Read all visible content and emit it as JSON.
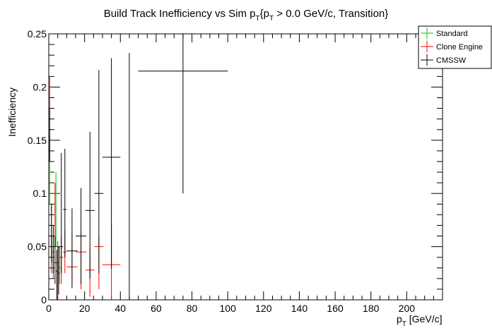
{
  "chart_data": {
    "type": "scatter",
    "title": "Build Track Inefficiency vs Sim p_T{p_T > 0.0 GeV/c, Transition}",
    "xlabel": "p_T [GeV/c]",
    "ylabel": "Inefficiency",
    "xlim": [
      0,
      220
    ],
    "ylim": [
      0,
      0.25
    ],
    "x_ticks": [
      0,
      20,
      40,
      60,
      80,
      100,
      120,
      140,
      160,
      180,
      200
    ],
    "y_ticks": [
      0,
      0.05,
      0.1,
      0.15,
      0.2,
      0.25
    ],
    "y_tick_labels": [
      "0",
      "0.05",
      "0.1",
      "0.15",
      "0.2",
      "0.25"
    ],
    "grid": false,
    "legend_position": "top-right",
    "series": [
      {
        "name": "Standard",
        "color": "#00cc00",
        "points": [
          {
            "x": 0.5,
            "xerr": 0.5,
            "y": 0.12,
            "yerr_low": 0.03,
            "yerr_high": 0.035
          },
          {
            "x": 1.5,
            "xerr": 0.5,
            "y": 0.06,
            "yerr_low": 0.02,
            "yerr_high": 0.03
          },
          {
            "x": 2.5,
            "xerr": 0.5,
            "y": 0.04,
            "yerr_low": 0.015,
            "yerr_high": 0.02
          },
          {
            "x": 4,
            "xerr": 1,
            "y": 0.1,
            "yerr_low": 0.05,
            "yerr_high": 0.02
          },
          {
            "x": 6,
            "xerr": 1,
            "y": 0.03,
            "yerr_low": 0.015,
            "yerr_high": 0.02
          }
        ]
      },
      {
        "name": "Clone Engine",
        "color": "#ff0000",
        "points": [
          {
            "x": 0.5,
            "xerr": 0.5,
            "y": 0.2,
            "yerr_low": 0.02,
            "yerr_high": 0.01
          },
          {
            "x": 1.5,
            "xerr": 0.5,
            "y": 0.04,
            "yerr_low": 0.015,
            "yerr_high": 0.02
          },
          {
            "x": 2.5,
            "xerr": 0.5,
            "y": 0.03,
            "yerr_low": 0.01,
            "yerr_high": 0.02
          },
          {
            "x": 3.5,
            "xerr": 0.5,
            "y": 0.1,
            "yerr_low": 0.05,
            "yerr_high": 0.01
          },
          {
            "x": 5,
            "xerr": 1,
            "y": 0.035,
            "yerr_low": 0.035,
            "yerr_high": 0.02
          },
          {
            "x": 7,
            "xerr": 1,
            "y": 0.04,
            "yerr_low": 0.025,
            "yerr_high": 0.02
          },
          {
            "x": 9,
            "xerr": 1,
            "y": 0.045,
            "yerr_low": 0.02,
            "yerr_high": 0.02
          },
          {
            "x": 13,
            "xerr": 3,
            "y": 0.031,
            "yerr_low": 0.015,
            "yerr_high": 0.03
          },
          {
            "x": 18,
            "xerr": 3,
            "y": 0.045,
            "yerr_low": 0.035,
            "yerr_high": 0.02
          },
          {
            "x": 23,
            "xerr": 2.5,
            "y": 0.028,
            "yerr_low": 0.025,
            "yerr_high": 0.02
          },
          {
            "x": 28,
            "xerr": 2.5,
            "y": 0.05,
            "yerr_low": 0.04,
            "yerr_high": 0.01
          },
          {
            "x": 35,
            "xerr": 5,
            "y": 0.033,
            "yerr_low": 0.033,
            "yerr_high": 0.038
          }
        ]
      },
      {
        "name": "CMSSW",
        "color": "#000000",
        "points": [
          {
            "x": 0.5,
            "xerr": 0.5,
            "y": 0.16,
            "yerr_low": 0.03,
            "yerr_high": 0.02
          },
          {
            "x": 1.5,
            "xerr": 0.5,
            "y": 0.06,
            "yerr_low": 0.025,
            "yerr_high": 0.03
          },
          {
            "x": 2.5,
            "xerr": 0.5,
            "y": 0.045,
            "yerr_low": 0.02,
            "yerr_high": 0.025
          },
          {
            "x": 3.5,
            "xerr": 0.5,
            "y": 0.035,
            "yerr_low": 0.02,
            "yerr_high": 0.025
          },
          {
            "x": 4.5,
            "xerr": 0.5,
            "y": 0.027,
            "yerr_low": 0.027,
            "yerr_high": 0.02
          },
          {
            "x": 5.5,
            "xerr": 0.5,
            "y": 0.025,
            "yerr_low": 0.02,
            "yerr_high": 0.025
          },
          {
            "x": 7,
            "xerr": 1,
            "y": 0.05,
            "yerr_low": 0.025,
            "yerr_high": 0.088
          },
          {
            "x": 9,
            "xerr": 1,
            "y": 0.085,
            "yerr_low": 0.045,
            "yerr_high": 0.057
          },
          {
            "x": 13,
            "xerr": 3,
            "y": 0.046,
            "yerr_low": 0.035,
            "yerr_high": 0.04
          },
          {
            "x": 18,
            "xerr": 3,
            "y": 0.06,
            "yerr_low": 0.045,
            "yerr_high": 0.045
          },
          {
            "x": 23,
            "xerr": 2.5,
            "y": 0.084,
            "yerr_low": 0.064,
            "yerr_high": 0.074
          },
          {
            "x": 28,
            "xerr": 2.5,
            "y": 0.1,
            "yerr_low": 0.075,
            "yerr_high": 0.116
          },
          {
            "x": 35,
            "xerr": 5,
            "y": 0.134,
            "yerr_low": 0.105,
            "yerr_high": 0.093
          },
          {
            "x": 45,
            "xerr": 0,
            "y": 0.12,
            "yerr_low": 0.12,
            "yerr_high": 0.112
          },
          {
            "x": 75,
            "xerr": 25,
            "y": 0.215,
            "yerr_low": 0.115,
            "yerr_high": 0.045
          }
        ]
      }
    ]
  }
}
